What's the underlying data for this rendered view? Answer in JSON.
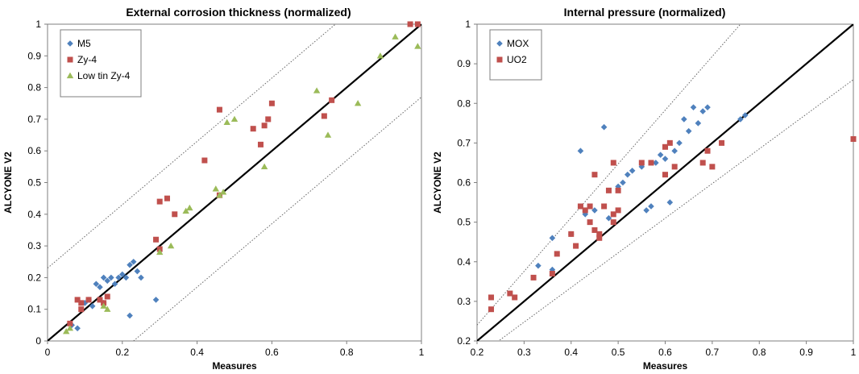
{
  "chart_data": [
    {
      "type": "scatter",
      "title": "External corrosion thickness (normalized)",
      "xlabel": "Measures",
      "ylabel": "ALCYONE V2",
      "xlim": [
        0,
        1
      ],
      "ylim": [
        0,
        1
      ],
      "x_ticks": [
        "0",
        "0.2",
        "0.4",
        "0.6",
        "0.8",
        "1"
      ],
      "x_tick_values": [
        0,
        0.2,
        0.4,
        0.6,
        0.8,
        1
      ],
      "y_ticks": [
        "0",
        "0.1",
        "0.2",
        "0.3",
        "0.4",
        "0.5",
        "0.6",
        "0.7",
        "0.8",
        "0.9",
        "1"
      ],
      "y_tick_values": [
        0,
        0.1,
        0.2,
        0.3,
        0.4,
        0.5,
        0.6,
        0.7,
        0.8,
        0.9,
        1
      ],
      "grid": false,
      "legend_position": "top-left",
      "reference_lines": [
        {
          "style": "solid",
          "points": [
            [
              0,
              0
            ],
            [
              1,
              1
            ]
          ]
        },
        {
          "style": "dotted",
          "points": [
            [
              0,
              0.23
            ],
            [
              0.77,
              1
            ]
          ]
        },
        {
          "style": "dotted",
          "points": [
            [
              0.23,
              0
            ],
            [
              1,
              0.77
            ]
          ]
        }
      ],
      "series": [
        {
          "name": "M5",
          "marker": "diamond",
          "color": "#4f81bd",
          "points": [
            [
              0.065,
              0.05
            ],
            [
              0.08,
              0.04
            ],
            [
              0.1,
              0.12
            ],
            [
              0.11,
              0.13
            ],
            [
              0.12,
              0.11
            ],
            [
              0.13,
              0.18
            ],
            [
              0.14,
              0.17
            ],
            [
              0.15,
              0.2
            ],
            [
              0.16,
              0.19
            ],
            [
              0.17,
              0.2
            ],
            [
              0.18,
              0.18
            ],
            [
              0.19,
              0.2
            ],
            [
              0.2,
              0.21
            ],
            [
              0.21,
              0.2
            ],
            [
              0.22,
              0.24
            ],
            [
              0.23,
              0.25
            ],
            [
              0.24,
              0.22
            ],
            [
              0.25,
              0.2
            ],
            [
              0.22,
              0.08
            ],
            [
              0.29,
              0.13
            ],
            [
              0.15,
              0.12
            ]
          ]
        },
        {
          "name": "Zy-4",
          "marker": "square",
          "color": "#c0504d",
          "points": [
            [
              0.06,
              0.055
            ],
            [
              0.08,
              0.13
            ],
            [
              0.09,
              0.1
            ],
            [
              0.09,
              0.12
            ],
            [
              0.11,
              0.13
            ],
            [
              0.14,
              0.13
            ],
            [
              0.15,
              0.12
            ],
            [
              0.16,
              0.14
            ],
            [
              0.29,
              0.32
            ],
            [
              0.3,
              0.29
            ],
            [
              0.3,
              0.44
            ],
            [
              0.32,
              0.45
            ],
            [
              0.34,
              0.4
            ],
            [
              0.42,
              0.57
            ],
            [
              0.46,
              0.46
            ],
            [
              0.46,
              0.73
            ],
            [
              0.55,
              0.67
            ],
            [
              0.57,
              0.62
            ],
            [
              0.58,
              0.68
            ],
            [
              0.59,
              0.7
            ],
            [
              0.6,
              0.75
            ],
            [
              0.74,
              0.71
            ],
            [
              0.76,
              0.76
            ],
            [
              0.97,
              1.0
            ],
            [
              0.99,
              1.0
            ]
          ]
        },
        {
          "name": "Low tin Zy-4",
          "marker": "triangle",
          "color": "#9bbb59",
          "points": [
            [
              0.05,
              0.03
            ],
            [
              0.06,
              0.04
            ],
            [
              0.16,
              0.1
            ],
            [
              0.15,
              0.11
            ],
            [
              0.3,
              0.28
            ],
            [
              0.33,
              0.3
            ],
            [
              0.37,
              0.41
            ],
            [
              0.38,
              0.42
            ],
            [
              0.45,
              0.48
            ],
            [
              0.46,
              0.46
            ],
            [
              0.47,
              0.47
            ],
            [
              0.48,
              0.69
            ],
            [
              0.5,
              0.7
            ],
            [
              0.58,
              0.55
            ],
            [
              0.72,
              0.79
            ],
            [
              0.75,
              0.65
            ],
            [
              0.83,
              0.75
            ],
            [
              0.89,
              0.9
            ],
            [
              0.93,
              0.96
            ],
            [
              0.99,
              0.93
            ]
          ]
        }
      ]
    },
    {
      "type": "scatter",
      "title": "Internal pressure (normalized)",
      "xlabel": "Measures",
      "ylabel": "ALCYONE V2",
      "xlim": [
        0.2,
        1
      ],
      "ylim": [
        0.2,
        1
      ],
      "x_ticks": [
        "0.2",
        "0.3",
        "0.4",
        "0.5",
        "0.6",
        "0.7",
        "0.8",
        "0.9",
        "1"
      ],
      "x_tick_values": [
        0.2,
        0.3,
        0.4,
        0.5,
        0.6,
        0.7,
        0.8,
        0.9,
        1
      ],
      "y_ticks": [
        "0.2",
        "0.3",
        "0.4",
        "0.5",
        "0.6",
        "0.7",
        "0.8",
        "0.9",
        "1"
      ],
      "y_tick_values": [
        0.2,
        0.3,
        0.4,
        0.5,
        0.6,
        0.7,
        0.8,
        0.9,
        1
      ],
      "grid": false,
      "legend_position": "top-left",
      "reference_lines": [
        {
          "style": "solid",
          "points": [
            [
              0.2,
              0.2
            ],
            [
              1,
              1
            ]
          ]
        },
        {
          "style": "dotted",
          "points": [
            [
              0.2,
              0.24
            ],
            [
              0.76,
              1
            ]
          ]
        },
        {
          "style": "dotted",
          "points": [
            [
              0.2,
              0.16
            ],
            [
              1,
              0.86
            ]
          ]
        }
      ],
      "series": [
        {
          "name": "MOX",
          "marker": "diamond",
          "color": "#4f81bd",
          "points": [
            [
              0.33,
              0.39
            ],
            [
              0.36,
              0.46
            ],
            [
              0.36,
              0.38
            ],
            [
              0.4,
              0.47
            ],
            [
              0.42,
              0.68
            ],
            [
              0.43,
              0.52
            ],
            [
              0.45,
              0.53
            ],
            [
              0.47,
              0.74
            ],
            [
              0.48,
              0.51
            ],
            [
              0.5,
              0.59
            ],
            [
              0.51,
              0.6
            ],
            [
              0.52,
              0.62
            ],
            [
              0.53,
              0.63
            ],
            [
              0.55,
              0.64
            ],
            [
              0.56,
              0.53
            ],
            [
              0.57,
              0.54
            ],
            [
              0.58,
              0.65
            ],
            [
              0.59,
              0.67
            ],
            [
              0.6,
              0.66
            ],
            [
              0.61,
              0.55
            ],
            [
              0.62,
              0.68
            ],
            [
              0.63,
              0.7
            ],
            [
              0.64,
              0.76
            ],
            [
              0.65,
              0.73
            ],
            [
              0.66,
              0.79
            ],
            [
              0.67,
              0.75
            ],
            [
              0.68,
              0.78
            ],
            [
              0.69,
              0.79
            ],
            [
              0.76,
              0.76
            ],
            [
              0.77,
              0.77
            ]
          ]
        },
        {
          "name": "UO2",
          "marker": "square",
          "color": "#c0504d",
          "points": [
            [
              0.23,
              0.31
            ],
            [
              0.23,
              0.28
            ],
            [
              0.27,
              0.32
            ],
            [
              0.28,
              0.31
            ],
            [
              0.32,
              0.36
            ],
            [
              0.36,
              0.37
            ],
            [
              0.37,
              0.42
            ],
            [
              0.4,
              0.47
            ],
            [
              0.41,
              0.44
            ],
            [
              0.42,
              0.54
            ],
            [
              0.43,
              0.53
            ],
            [
              0.44,
              0.5
            ],
            [
              0.44,
              0.54
            ],
            [
              0.45,
              0.62
            ],
            [
              0.45,
              0.48
            ],
            [
              0.46,
              0.46
            ],
            [
              0.46,
              0.47
            ],
            [
              0.47,
              0.54
            ],
            [
              0.48,
              0.58
            ],
            [
              0.49,
              0.5
            ],
            [
              0.49,
              0.65
            ],
            [
              0.49,
              0.52
            ],
            [
              0.5,
              0.53
            ],
            [
              0.5,
              0.58
            ],
            [
              0.55,
              0.65
            ],
            [
              0.57,
              0.65
            ],
            [
              0.6,
              0.62
            ],
            [
              0.6,
              0.69
            ],
            [
              0.61,
              0.7
            ],
            [
              0.62,
              0.64
            ],
            [
              0.68,
              0.65
            ],
            [
              0.69,
              0.68
            ],
            [
              0.7,
              0.64
            ],
            [
              0.72,
              0.7
            ],
            [
              1.0,
              0.71
            ]
          ]
        }
      ]
    }
  ]
}
